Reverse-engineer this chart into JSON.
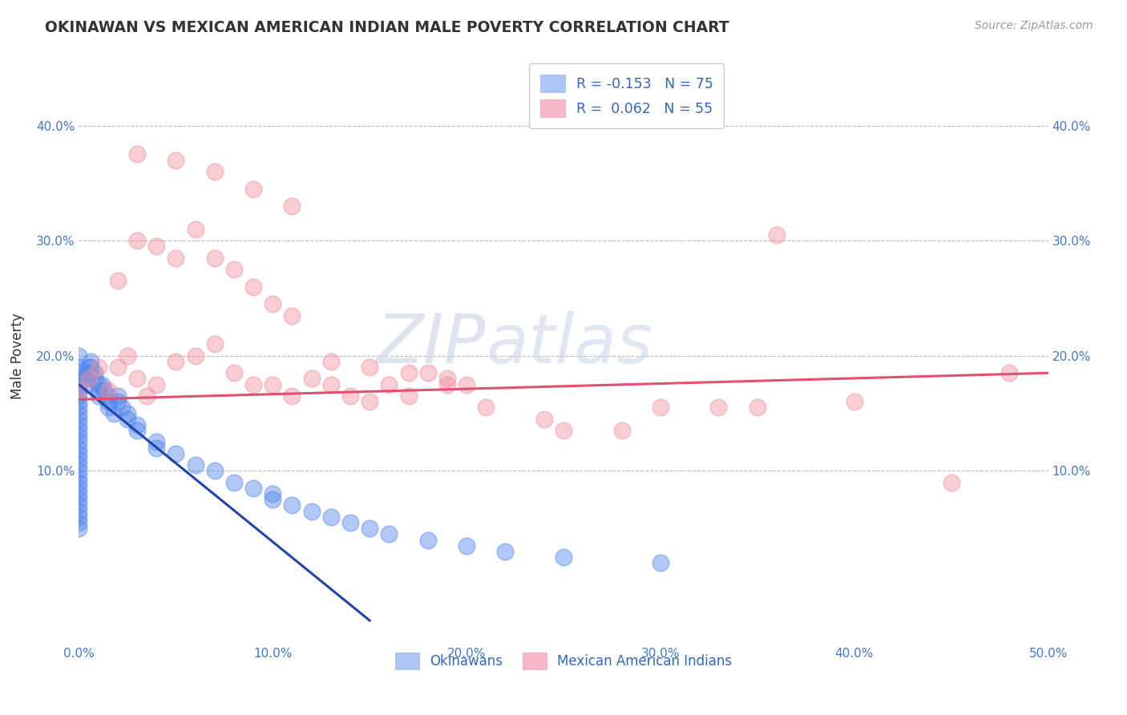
{
  "title": "OKINAWAN VS MEXICAN AMERICAN INDIAN MALE POVERTY CORRELATION CHART",
  "source": "Source: ZipAtlas.com",
  "xlabel_ticks": [
    "0.0%",
    "10.0%",
    "20.0%",
    "30.0%",
    "40.0%",
    "50.0%"
  ],
  "xlabel_vals": [
    0.0,
    0.1,
    0.2,
    0.3,
    0.4,
    0.5
  ],
  "ylabel": "Male Poverty",
  "ylabel_ticks": [
    "10.0%",
    "20.0%",
    "30.0%",
    "40.0%"
  ],
  "ylabel_vals": [
    0.1,
    0.2,
    0.3,
    0.4
  ],
  "xlim": [
    0.0,
    0.5
  ],
  "ylim": [
    -0.05,
    0.45
  ],
  "legend_items": [
    {
      "label": "R = -0.153   N = 75",
      "color": "#aec6f5"
    },
    {
      "label": "R =  0.062   N = 55",
      "color": "#f5b8c8"
    }
  ],
  "legend_labels_bottom": [
    "Okinawans",
    "Mexican American Indians"
  ],
  "watermark_zip": "ZIP",
  "watermark_atlas": "atlas",
  "okinawan_color": "#5588ee",
  "mexican_color": "#f090a0",
  "okinawan_line_color": "#2244aa",
  "mexican_line_color": "#e05070",
  "grid_color": "#bbbbbb",
  "background_color": "#ffffff",
  "ok_line_x0": 0.0,
  "ok_line_y0": 0.175,
  "ok_line_x1": 0.15,
  "ok_line_y1": -0.03,
  "mex_line_x0": 0.0,
  "mex_line_y0": 0.162,
  "mex_line_x1": 0.5,
  "mex_line_y1": 0.185,
  "okinawan_x": [
    0.0,
    0.0,
    0.0,
    0.0,
    0.0,
    0.0,
    0.0,
    0.0,
    0.0,
    0.0,
    0.0,
    0.0,
    0.0,
    0.0,
    0.0,
    0.0,
    0.0,
    0.0,
    0.0,
    0.0,
    0.0,
    0.0,
    0.0,
    0.0,
    0.0,
    0.0,
    0.0,
    0.0,
    0.0,
    0.0,
    0.003,
    0.003,
    0.003,
    0.005,
    0.005,
    0.006,
    0.006,
    0.008,
    0.008,
    0.01,
    0.01,
    0.01,
    0.012,
    0.013,
    0.015,
    0.015,
    0.015,
    0.018,
    0.02,
    0.02,
    0.022,
    0.025,
    0.025,
    0.03,
    0.03,
    0.04,
    0.04,
    0.05,
    0.06,
    0.07,
    0.08,
    0.09,
    0.1,
    0.1,
    0.11,
    0.12,
    0.13,
    0.14,
    0.15,
    0.16,
    0.18,
    0.2,
    0.22,
    0.25,
    0.3
  ],
  "okinawan_y": [
    0.2,
    0.19,
    0.185,
    0.18,
    0.175,
    0.17,
    0.165,
    0.16,
    0.155,
    0.15,
    0.145,
    0.14,
    0.135,
    0.13,
    0.125,
    0.12,
    0.115,
    0.11,
    0.105,
    0.1,
    0.095,
    0.09,
    0.085,
    0.08,
    0.075,
    0.07,
    0.065,
    0.06,
    0.055,
    0.05,
    0.185,
    0.18,
    0.175,
    0.19,
    0.185,
    0.195,
    0.19,
    0.185,
    0.18,
    0.175,
    0.17,
    0.165,
    0.175,
    0.17,
    0.165,
    0.16,
    0.155,
    0.15,
    0.165,
    0.16,
    0.155,
    0.15,
    0.145,
    0.14,
    0.135,
    0.125,
    0.12,
    0.115,
    0.105,
    0.1,
    0.09,
    0.085,
    0.08,
    0.075,
    0.07,
    0.065,
    0.06,
    0.055,
    0.05,
    0.045,
    0.04,
    0.035,
    0.03,
    0.025,
    0.02
  ],
  "mexican_x": [
    0.0,
    0.005,
    0.01,
    0.015,
    0.02,
    0.025,
    0.03,
    0.035,
    0.04,
    0.05,
    0.06,
    0.07,
    0.08,
    0.09,
    0.1,
    0.11,
    0.12,
    0.13,
    0.14,
    0.15,
    0.16,
    0.17,
    0.18,
    0.19,
    0.2,
    0.02,
    0.03,
    0.04,
    0.05,
    0.06,
    0.07,
    0.08,
    0.09,
    0.1,
    0.11,
    0.03,
    0.05,
    0.07,
    0.09,
    0.11,
    0.13,
    0.15,
    0.17,
    0.19,
    0.21,
    0.24,
    0.25,
    0.28,
    0.3,
    0.33,
    0.35,
    0.36,
    0.4,
    0.45,
    0.48
  ],
  "mexican_y": [
    0.17,
    0.18,
    0.19,
    0.17,
    0.19,
    0.2,
    0.18,
    0.165,
    0.175,
    0.195,
    0.2,
    0.21,
    0.185,
    0.175,
    0.175,
    0.165,
    0.18,
    0.175,
    0.165,
    0.16,
    0.175,
    0.165,
    0.185,
    0.18,
    0.175,
    0.265,
    0.3,
    0.295,
    0.285,
    0.31,
    0.285,
    0.275,
    0.26,
    0.245,
    0.235,
    0.375,
    0.37,
    0.36,
    0.345,
    0.33,
    0.195,
    0.19,
    0.185,
    0.175,
    0.155,
    0.145,
    0.135,
    0.135,
    0.155,
    0.155,
    0.155,
    0.305,
    0.16,
    0.09,
    0.185
  ]
}
